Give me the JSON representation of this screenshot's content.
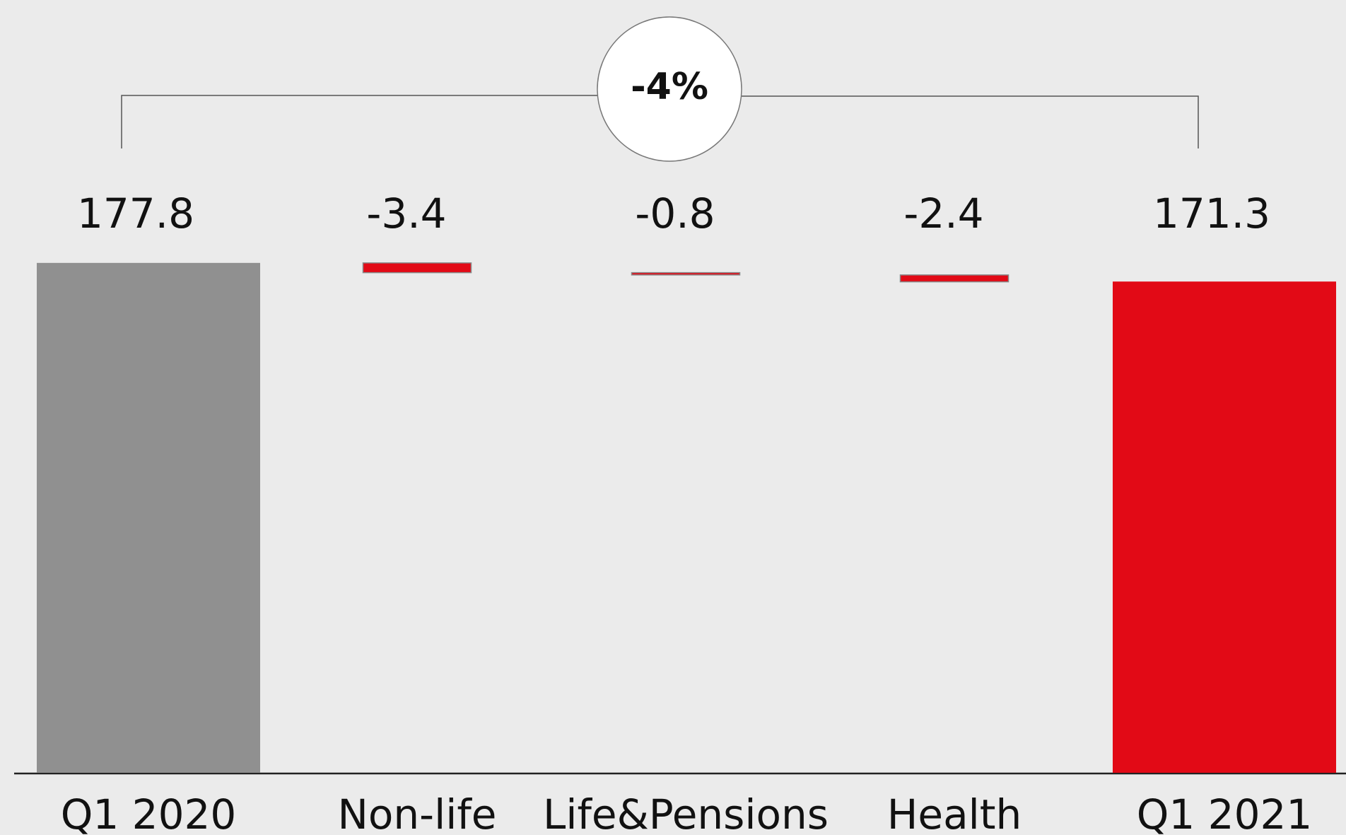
{
  "chart_data": {
    "type": "waterfall",
    "categories": [
      "Q1 2020",
      "Non-life",
      "Life&Pensions",
      "Health",
      "Q1 2021"
    ],
    "values": [
      177.8,
      -3.4,
      -0.8,
      -2.4,
      171.3
    ],
    "measure": [
      "absolute",
      "relative",
      "relative",
      "relative",
      "absolute"
    ],
    "colors": [
      "#909090",
      "#e20a16",
      "#e20a16",
      "#e20a16",
      "#e20a16"
    ],
    "annotation": "-4%"
  }
}
